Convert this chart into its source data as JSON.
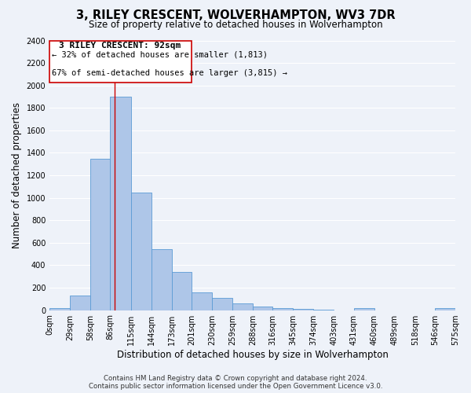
{
  "title": "3, RILEY CRESCENT, WOLVERHAMPTON, WV3 7DR",
  "subtitle": "Size of property relative to detached houses in Wolverhampton",
  "xlabel": "Distribution of detached houses by size in Wolverhampton",
  "ylabel": "Number of detached properties",
  "bin_labels": [
    "0sqm",
    "29sqm",
    "58sqm",
    "86sqm",
    "115sqm",
    "144sqm",
    "173sqm",
    "201sqm",
    "230sqm",
    "259sqm",
    "288sqm",
    "316sqm",
    "345sqm",
    "374sqm",
    "403sqm",
    "431sqm",
    "460sqm",
    "489sqm",
    "518sqm",
    "546sqm",
    "575sqm"
  ],
  "bin_edges": [
    0,
    29,
    58,
    86,
    115,
    144,
    173,
    201,
    230,
    259,
    288,
    316,
    345,
    374,
    403,
    431,
    460,
    489,
    518,
    546,
    575
  ],
  "bar_heights": [
    15,
    130,
    1350,
    1900,
    1045,
    540,
    340,
    160,
    110,
    60,
    30,
    20,
    10,
    5,
    0,
    20,
    0,
    0,
    0,
    20
  ],
  "bar_color": "#aec6e8",
  "bar_edge_color": "#5b9bd5",
  "vline_x": 92,
  "vline_color": "#cc0000",
  "annotation_title": "3 RILEY CRESCENT: 92sqm",
  "annotation_line1": "← 32% of detached houses are smaller (1,813)",
  "annotation_line2": "67% of semi-detached houses are larger (3,815) →",
  "annotation_box_color": "#cc0000",
  "ylim": [
    0,
    2400
  ],
  "yticks": [
    0,
    200,
    400,
    600,
    800,
    1000,
    1200,
    1400,
    1600,
    1800,
    2000,
    2200,
    2400
  ],
  "footer_line1": "Contains HM Land Registry data © Crown copyright and database right 2024.",
  "footer_line2": "Contains public sector information licensed under the Open Government Licence v3.0.",
  "background_color": "#eef2f9",
  "grid_color": "#ffffff",
  "title_fontsize": 10.5,
  "subtitle_fontsize": 8.5,
  "axis_label_fontsize": 8.5,
  "tick_fontsize": 7,
  "annotation_fontsize": 8,
  "footer_fontsize": 6.2
}
